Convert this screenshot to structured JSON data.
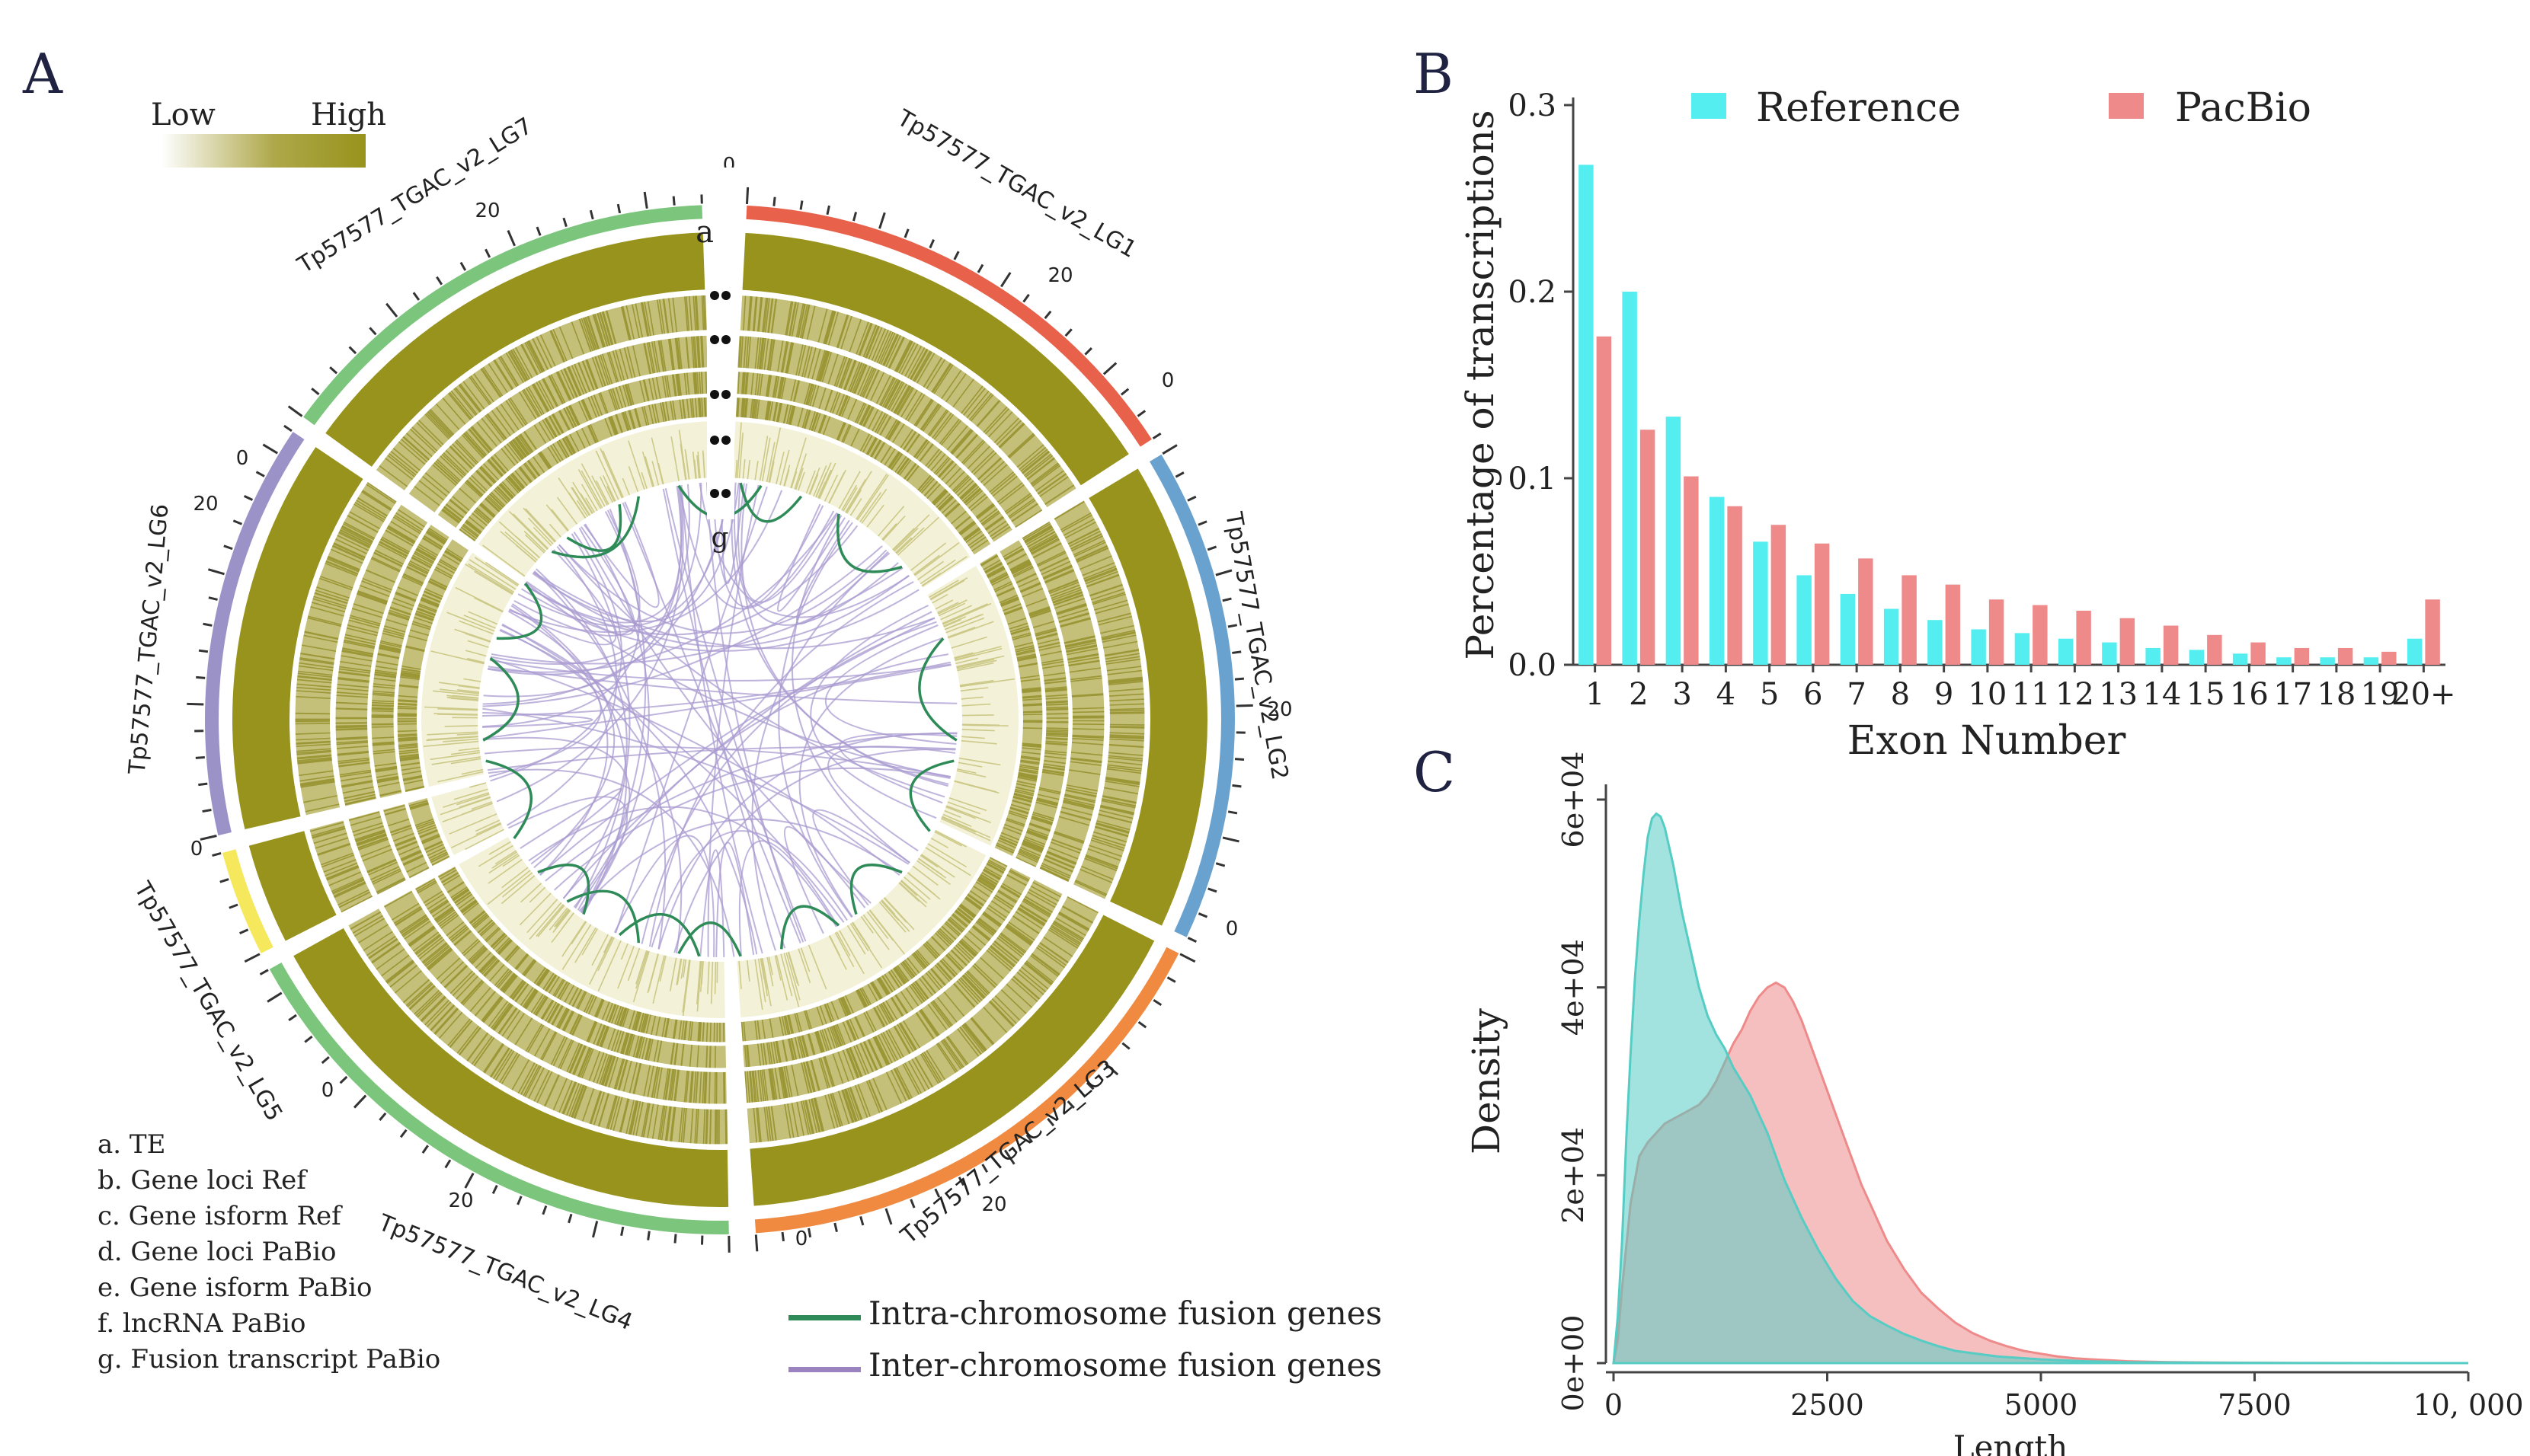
{
  "panels": {
    "a": "A",
    "b": "B",
    "c": "C"
  },
  "colors": {
    "olive": "#98931c",
    "olive_light": "#e9e7bf",
    "cyan": "#55eef0",
    "salmon": "#ee8a8a",
    "intra": "#2e8b57",
    "inter": "#a99bd0",
    "axis": "#444444"
  },
  "chart_data": [
    {
      "type": "circos",
      "title": "",
      "heat_legend": {
        "low": "Low",
        "high": "High"
      },
      "chromosomes": [
        {
          "name": "Tp57577_TGAC_v2_LG1",
          "color": "#e8614b",
          "ticks": [
            "0",
            "20"
          ]
        },
        {
          "name": "Tp57577_TGAC_v2_LG2",
          "color": "#6aa2cf",
          "ticks": [
            "0",
            "20"
          ]
        },
        {
          "name": "Tp57577_TGAC_v2_LG3",
          "color": "#f08a40",
          "ticks": [
            "0",
            "20"
          ]
        },
        {
          "name": "Tp57577_TGAC_v2_LG4",
          "color": "#7cc57c",
          "ticks": [
            "0",
            "20"
          ]
        },
        {
          "name": "Tp57577_TGAC_v2_LG5",
          "color": "#f5e85c",
          "ticks": [
            "0"
          ]
        },
        {
          "name": "Tp57577_TGAC_v2_LG6",
          "color": "#9b93c8",
          "ticks": [
            "0",
            "20"
          ]
        },
        {
          "name": "Tp57577_TGAC_v2_LG7",
          "color": "#7cc57c",
          "ticks": [
            "0",
            "20"
          ]
        }
      ],
      "ring_labels": [
        "a",
        "g"
      ],
      "rings": [
        "a. TE",
        "b. Gene loci Ref",
        "c. Gene isform Ref",
        "d. Gene loci PaBio",
        "e. Gene isform PaBio",
        "f. lncRNA PaBio",
        "g. Fusion transcript PaBio"
      ],
      "links_legend": [
        {
          "label": "Intra-chromosome fusion genes",
          "color": "#2e8b57"
        },
        {
          "label": "Inter-chromosome fusion genes",
          "color": "#9b82c0"
        }
      ]
    },
    {
      "type": "bar",
      "title": "",
      "xlabel": "Exon Number",
      "ylabel": "Percentage of transcriptions",
      "ylim": [
        0,
        0.3
      ],
      "yticks": [
        "0.0",
        "0.1",
        "0.2",
        "0.3"
      ],
      "categories": [
        "1",
        "2",
        "3",
        "4",
        "5",
        "6",
        "7",
        "8",
        "9",
        "10",
        "11",
        "12",
        "13",
        "14",
        "15",
        "16",
        "17",
        "18",
        "19",
        "20+"
      ],
      "series": [
        {
          "name": "Reference",
          "color": "#55eef0",
          "values": [
            0.268,
            0.2,
            0.133,
            0.09,
            0.066,
            0.048,
            0.038,
            0.03,
            0.024,
            0.019,
            0.017,
            0.014,
            0.012,
            0.009,
            0.008,
            0.006,
            0.004,
            0.004,
            0.004,
            0.014
          ]
        },
        {
          "name": "PacBio",
          "color": "#ee8a8a",
          "values": [
            0.176,
            0.126,
            0.101,
            0.085,
            0.075,
            0.065,
            0.057,
            0.048,
            0.043,
            0.035,
            0.032,
            0.029,
            0.025,
            0.021,
            0.016,
            0.012,
            0.009,
            0.009,
            0.007,
            0.035
          ]
        }
      ]
    },
    {
      "type": "area",
      "title": "",
      "xlabel": "Length",
      "ylabel": "Density",
      "xlim": [
        0,
        10000
      ],
      "ylim": [
        0,
        60000
      ],
      "xticks": [
        "0",
        "2500",
        "5000",
        "7500",
        "10, 000"
      ],
      "yticks": [
        "0e+00",
        "2e+04",
        "4e+04",
        "6e+04"
      ],
      "series": [
        {
          "name": "PacBio",
          "color": "#ee8a8a",
          "x": [
            0,
            50,
            100,
            200,
            300,
            400,
            500,
            600,
            700,
            800,
            900,
            1000,
            1100,
            1200,
            1300,
            1400,
            1500,
            1600,
            1700,
            1800,
            1900,
            2000,
            2100,
            2200,
            2300,
            2400,
            2500,
            2600,
            2700,
            2800,
            2900,
            3000,
            3200,
            3400,
            3600,
            3800,
            4000,
            4200,
            4400,
            4600,
            4800,
            5000,
            5200,
            5400,
            5600,
            5800,
            6000,
            6500,
            7000,
            7500,
            8000,
            9000,
            10000
          ],
          "y": [
            0,
            2500,
            8000,
            17000,
            22000,
            23500,
            24500,
            25500,
            26000,
            26500,
            27000,
            27500,
            28500,
            30000,
            32000,
            34000,
            35500,
            37500,
            39000,
            40000,
            40500,
            40000,
            38500,
            36500,
            34000,
            31500,
            29000,
            26500,
            24000,
            21500,
            19000,
            17000,
            13000,
            10000,
            7500,
            5800,
            4300,
            3200,
            2400,
            1800,
            1300,
            1000,
            700,
            500,
            400,
            300,
            200,
            100,
            60,
            30,
            10,
            0,
            0
          ]
        },
        {
          "name": "Reference",
          "color": "#55ccc4",
          "x": [
            0,
            50,
            100,
            150,
            200,
            250,
            300,
            350,
            400,
            450,
            500,
            550,
            600,
            650,
            700,
            800,
            900,
            1000,
            1100,
            1200,
            1300,
            1400,
            1500,
            1600,
            1700,
            1800,
            1900,
            2000,
            2200,
            2400,
            2600,
            2800,
            3000,
            3200,
            3400,
            3600,
            3800,
            4000,
            4500,
            5000,
            5500,
            6000,
            7000,
            8000,
            10000
          ],
          "y": [
            0,
            5000,
            13000,
            24000,
            33000,
            41000,
            47000,
            52000,
            56000,
            58000,
            58500,
            58200,
            57000,
            55000,
            53000,
            48000,
            44000,
            40000,
            37000,
            35000,
            33500,
            31500,
            30000,
            28500,
            26500,
            24500,
            22000,
            19500,
            15500,
            12000,
            9000,
            6600,
            5000,
            4000,
            3100,
            2400,
            1800,
            1300,
            700,
            400,
            200,
            100,
            40,
            10,
            0
          ]
        }
      ]
    }
  ]
}
